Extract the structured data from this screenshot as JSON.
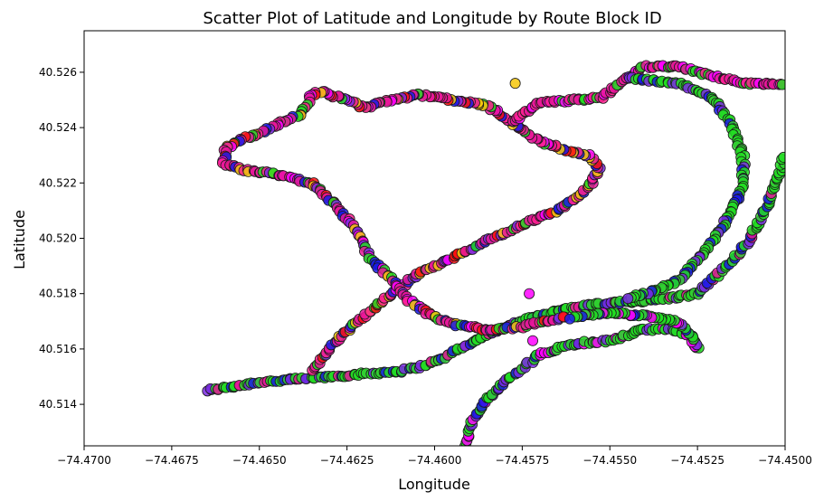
{
  "chart_data": {
    "type": "scatter",
    "title": "Scatter Plot of Latitude and Longitude by Route Block ID",
    "xlabel": "Longitude",
    "ylabel": "Latitude",
    "xlim": [
      -74.47,
      -74.45
    ],
    "ylim": [
      40.5125,
      40.5275
    ],
    "xticks": [
      -74.47,
      -74.4675,
      -74.465,
      -74.4625,
      -74.46,
      -74.4575,
      -74.455,
      -74.4525,
      -74.45
    ],
    "xtick_labels": [
      "−74.4700",
      "−74.4675",
      "−74.4650",
      "−74.4625",
      "−74.4600",
      "−74.4575",
      "−74.4550",
      "−74.4525",
      "−74.4500"
    ],
    "yticks": [
      40.514,
      40.516,
      40.518,
      40.52,
      40.522,
      40.524,
      40.526
    ],
    "ytick_labels": [
      "40.514",
      "40.516",
      "40.518",
      "40.520",
      "40.522",
      "40.524",
      "40.526"
    ],
    "grid": false,
    "legend": "none",
    "marker_edge_color": "#1a1a1a",
    "colors": [
      "#e6169a",
      "#ff00ff",
      "#22dd22",
      "#1a1ae6",
      "#7a2be2",
      "#ff1111",
      "#f7c80c",
      "#ff2090",
      "#33cc33"
    ],
    "routes": [
      {
        "points": [
          [
            -74.4665,
            40.5145
          ],
          [
            -74.466,
            40.5146
          ],
          [
            -74.465,
            40.5148
          ],
          [
            -74.464,
            40.5149
          ],
          [
            -74.463,
            40.515
          ],
          [
            -74.462,
            40.5151
          ],
          [
            -74.461,
            40.5152
          ],
          [
            -74.4603,
            40.5154
          ],
          [
            -74.4597,
            40.5157
          ],
          [
            -74.4593,
            40.516
          ],
          [
            -74.4587,
            40.5164
          ],
          [
            -74.458,
            40.5168
          ],
          [
            -74.4573,
            40.5171
          ],
          [
            -74.4565,
            40.5174
          ],
          [
            -74.4555,
            40.5176
          ],
          [
            -74.4545,
            40.5177
          ],
          [
            -74.4535,
            40.5178
          ],
          [
            -74.453,
            40.5179
          ],
          [
            -74.4525,
            40.518
          ],
          [
            -74.452,
            40.5186
          ],
          [
            -74.4515,
            40.5192
          ],
          [
            -74.451,
            40.52
          ],
          [
            -74.4505,
            40.5212
          ],
          [
            -74.4502,
            40.5222
          ],
          [
            -74.45,
            40.523
          ]
        ],
        "n": 110,
        "colors": [
          2,
          2,
          8,
          3,
          2,
          4,
          0,
          2
        ]
      },
      {
        "points": [
          [
            -74.4635,
            40.5152
          ],
          [
            -74.4628,
            40.5163
          ],
          [
            -74.462,
            40.5172
          ],
          [
            -74.4612,
            40.518
          ],
          [
            -74.4605,
            40.5187
          ],
          [
            -74.4595,
            40.5193
          ],
          [
            -74.4585,
            40.5199
          ],
          [
            -74.4575,
            40.5205
          ],
          [
            -74.4565,
            40.521
          ],
          [
            -74.456,
            40.5214
          ],
          [
            -74.4555,
            40.522
          ],
          [
            -74.4553,
            40.5226
          ],
          [
            -74.4556,
            40.523
          ],
          [
            -74.4563,
            40.5232
          ],
          [
            -74.457,
            40.5235
          ],
          [
            -74.4578,
            40.5242
          ],
          [
            -74.4585,
            40.5248
          ],
          [
            -74.4595,
            40.525
          ],
          [
            -74.4605,
            40.5252
          ],
          [
            -74.4615,
            40.5249
          ],
          [
            -74.462,
            40.5247
          ],
          [
            -74.4625,
            40.525
          ],
          [
            -74.4632,
            40.5253
          ],
          [
            -74.4635,
            40.5252
          ],
          [
            -74.4638,
            40.5245
          ],
          [
            -74.4645,
            40.5241
          ],
          [
            -74.465,
            40.5238
          ],
          [
            -74.4655,
            40.5236
          ],
          [
            -74.466,
            40.5232
          ],
          [
            -74.466,
            40.5227
          ],
          [
            -74.4655,
            40.5225
          ],
          [
            -74.4645,
            40.5223
          ],
          [
            -74.4635,
            40.522
          ],
          [
            -74.4628,
            40.5212
          ],
          [
            -74.4622,
            40.5202
          ],
          [
            -74.4618,
            40.5192
          ],
          [
            -74.4612,
            40.5185
          ],
          [
            -74.4608,
            40.5178
          ],
          [
            -74.4602,
            40.5173
          ],
          [
            -74.4595,
            40.5169
          ],
          [
            -74.4585,
            40.5167
          ],
          [
            -74.4575,
            40.5168
          ],
          [
            -74.4568,
            40.517
          ],
          [
            -74.4562,
            40.5172
          ]
        ],
        "n": 130,
        "colors": [
          0,
          7,
          1,
          0,
          3,
          4,
          5,
          0,
          2,
          6
        ]
      },
      {
        "points": [
          [
            -74.4591,
            40.5125
          ],
          [
            -74.459,
            40.5132
          ],
          [
            -74.4585,
            40.5142
          ],
          [
            -74.4578,
            40.515
          ],
          [
            -74.457,
            40.5158
          ],
          [
            -74.456,
            40.5162
          ],
          [
            -74.455,
            40.5163
          ],
          [
            -74.4545,
            40.5165
          ],
          [
            -74.454,
            40.5167
          ],
          [
            -74.4533,
            40.5167
          ],
          [
            -74.4527,
            40.5165
          ],
          [
            -74.4525,
            40.516
          ],
          [
            -74.4528,
            40.5167
          ],
          [
            -74.4532,
            40.517
          ],
          [
            -74.454,
            40.5172
          ],
          [
            -74.455,
            40.5173
          ],
          [
            -74.4557,
            40.5172
          ],
          [
            -74.4562,
            40.5171
          ]
        ],
        "n": 60,
        "colors": [
          2,
          3,
          2,
          1,
          4,
          2
        ]
      },
      {
        "points": [
          [
            -74.4578,
            40.5242
          ],
          [
            -74.457,
            40.5249
          ],
          [
            -74.456,
            40.525
          ],
          [
            -74.4552,
            40.5251
          ],
          [
            -74.4545,
            40.5258
          ],
          [
            -74.454,
            40.5262
          ],
          [
            -74.453,
            40.5262
          ],
          [
            -74.4525,
            40.526
          ],
          [
            -74.4515,
            40.5257
          ],
          [
            -74.451,
            40.5256
          ],
          [
            -74.4505,
            40.5256
          ],
          [
            -74.45,
            40.5255
          ]
        ],
        "n": 40,
        "colors": [
          0,
          7,
          1,
          2,
          0
        ]
      },
      {
        "points": [
          [
            -74.4545,
            40.5258
          ],
          [
            -74.453,
            40.5256
          ],
          [
            -74.452,
            40.525
          ],
          [
            -74.4515,
            40.524
          ],
          [
            -74.4512,
            40.523
          ],
          [
            -74.4512,
            40.522
          ],
          [
            -74.4515,
            40.521
          ],
          [
            -74.452,
            40.52
          ],
          [
            -74.4525,
            40.5192
          ],
          [
            -74.453,
            40.5185
          ],
          [
            -74.4535,
            40.5182
          ],
          [
            -74.4545,
            40.5178
          ]
        ],
        "n": 50,
        "colors": [
          2,
          8,
          4,
          2,
          3,
          2
        ]
      }
    ],
    "outliers": [
      [
        -74.4577,
        40.5256
      ],
      [
        -74.4573,
        40.518
      ],
      [
        -74.4572,
        40.5163
      ]
    ]
  }
}
